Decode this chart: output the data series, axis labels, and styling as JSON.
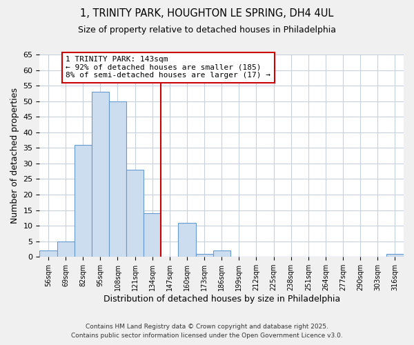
{
  "title": "1, TRINITY PARK, HOUGHTON LE SPRING, DH4 4UL",
  "subtitle": "Size of property relative to detached houses in Philadelphia",
  "xlabel": "Distribution of detached houses by size in Philadelphia",
  "ylabel": "Number of detached properties",
  "bin_labels": [
    "56sqm",
    "69sqm",
    "82sqm",
    "95sqm",
    "108sqm",
    "121sqm",
    "134sqm",
    "147sqm",
    "160sqm",
    "173sqm",
    "186sqm",
    "199sqm",
    "212sqm",
    "225sqm",
    "238sqm",
    "251sqm",
    "264sqm",
    "277sqm",
    "290sqm",
    "303sqm",
    "316sqm"
  ],
  "bar_values": [
    2,
    5,
    36,
    53,
    50,
    28,
    14,
    0,
    11,
    1,
    2,
    0,
    0,
    0,
    0,
    0,
    0,
    0,
    0,
    0,
    1
  ],
  "bar_color": "#ccddf0",
  "bar_edge_color": "#6699cc",
  "vline_x_index": 7,
  "vline_color": "#cc0000",
  "annotation_title": "1 TRINITY PARK: 143sqm",
  "annotation_line1": "← 92% of detached houses are smaller (185)",
  "annotation_line2": "8% of semi-detached houses are larger (17) →",
  "annotation_box_edge": "#cc0000",
  "ylim": [
    0,
    65
  ],
  "yticks": [
    0,
    5,
    10,
    15,
    20,
    25,
    30,
    35,
    40,
    45,
    50,
    55,
    60,
    65
  ],
  "background_color": "#f0f0f0",
  "plot_background": "#ffffff",
  "grid_color": "#c8d0dc",
  "footnote1": "Contains HM Land Registry data © Crown copyright and database right 2025.",
  "footnote2": "Contains public sector information licensed under the Open Government Licence v3.0."
}
